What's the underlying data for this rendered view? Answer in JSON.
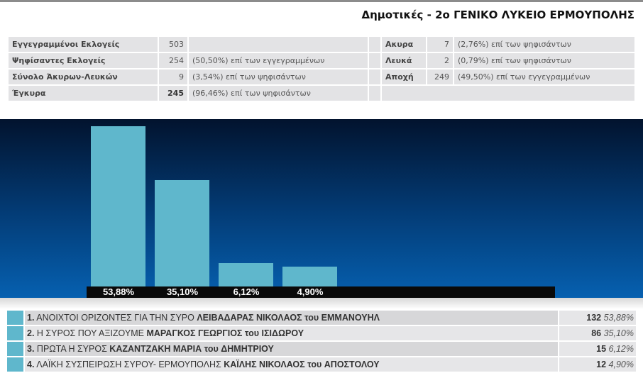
{
  "title": "Δημοτικές - 2ο ΓΕΝΙΚΟ ΛΥΚΕΙΟ ΕΡΜΟΥΠΟΛΗΣ",
  "stats_left": [
    {
      "label": "Εγγεγραμμένοι Εκλογείς",
      "value": "503",
      "note": ""
    },
    {
      "label": "Ψηφίσαντες Εκλογείς",
      "value": "254",
      "note": "(50,50%) επί των εγγεγραμμένων"
    },
    {
      "label": "Σύνολο Άκυρων-Λευκών",
      "value": "9",
      "note": "(3,54%) επί των ψηφισάντων"
    },
    {
      "label": "Έγκυρα",
      "value": "245",
      "note": "(96,46%) επί των ψηφισάντων"
    }
  ],
  "stats_right": [
    {
      "label": "Ακυρα",
      "value": "7",
      "note": "(2,76%) επί των ψηφισάντων"
    },
    {
      "label": "Λευκά",
      "value": "2",
      "note": "(0,79%) επί των ψηφισάντων"
    },
    {
      "label": "Αποχή",
      "value": "249",
      "note": "(49,50%) επί των εγγεγραμμένων"
    }
  ],
  "colors": {
    "bar": "#5fb7cc",
    "chart_top": "#02132e",
    "chart_bottom": "#0660b0"
  },
  "chart_data": {
    "type": "bar",
    "categories": [
      "1",
      "2",
      "3",
      "4"
    ],
    "values": [
      53.88,
      35.1,
      6.12,
      4.9
    ],
    "labels": [
      "53,88%",
      "35,10%",
      "6,12%",
      "4,90%"
    ]
  },
  "results": [
    {
      "num": "1.",
      "party": "ΑΝΟΙΧΤΟΙ ΟΡΙΖΟΝΤΕΣ ΓΙΑ ΤΗΝ ΣΥΡΟ",
      "candidate": "ΛΕΙΒΑΔΑΡΑΣ ΝΙΚΟΛΑΟΣ",
      "tou": "του",
      "father": "ΕΜΜΑΝΟΥΗΛ",
      "votes": "132",
      "pct": "53,88%"
    },
    {
      "num": "2.",
      "party": "Η ΣΥΡΟΣ ΠΟΥ ΑΞΙΖΟΥΜΕ",
      "candidate": "ΜΑΡΑΓΚΟΣ ΓΕΩΡΓΙΟΣ",
      "tou": "του",
      "father": "ΙΣΙΔΩΡΟΥ",
      "votes": "86",
      "pct": "35,10%"
    },
    {
      "num": "3.",
      "party": "ΠΡΩΤΑ Η ΣΥΡΟΣ",
      "candidate": "ΚΑΖΑΝΤΖΑΚΗ ΜΑΡΙΑ",
      "tou": "του",
      "father": "ΔΗΜΗΤΡΙΟΥ",
      "votes": "15",
      "pct": "6,12%"
    },
    {
      "num": "4.",
      "party": "ΛΑΪΚΗ ΣΥΣΠΕΙΡΩΣΗ ΣΥΡΟΥ- ΕΡΜΟΥΠΟΛΗΣ",
      "candidate": "ΚΑΪΛΗΣ ΝΙΚΟΛΑΟΣ",
      "tou": "του",
      "father": "ΑΠΟΣΤΟΛΟΥ",
      "votes": "12",
      "pct": "4,90%"
    }
  ]
}
